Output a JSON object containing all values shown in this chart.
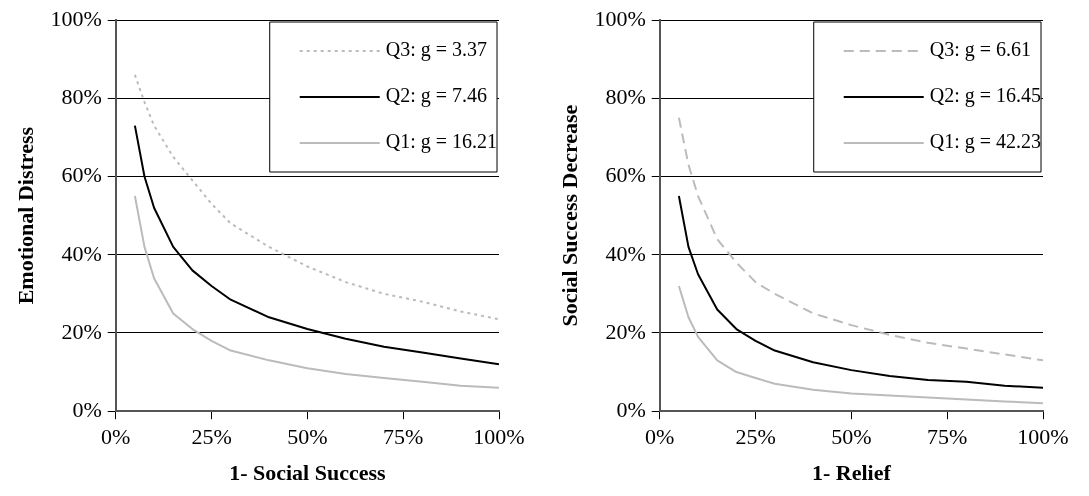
{
  "chart_data": [
    {
      "type": "line",
      "xlabel": "1- Social Success",
      "ylabel": "Emotional Distress",
      "x": [
        0.05,
        0.075,
        0.1,
        0.15,
        0.2,
        0.25,
        0.3,
        0.4,
        0.5,
        0.6,
        0.7,
        0.8,
        0.9,
        1.0
      ],
      "series": [
        {
          "name": "Q3: g = 3.37",
          "color": "#bbbbbb",
          "line_style": "dotted",
          "values": [
            86,
            79,
            73,
            65,
            59,
            53,
            48,
            42,
            37,
            33,
            30,
            28,
            25.5,
            23.5
          ]
        },
        {
          "name": "Q2: g = 7.46",
          "color": "#000000",
          "line_style": "solid",
          "values": [
            73,
            60,
            52,
            42,
            36,
            32,
            28.5,
            24,
            21,
            18.5,
            16.5,
            15,
            13.5,
            12
          ]
        },
        {
          "name": "Q1: g = 16.21",
          "color": "#bbbbbb",
          "line_style": "solid",
          "values": [
            55,
            42,
            34,
            25,
            21,
            18,
            15.5,
            13,
            11,
            9.5,
            8.5,
            7.5,
            6.5,
            6
          ]
        }
      ],
      "xlim": [
        0,
        1
      ],
      "xticks": [
        {
          "value": 0,
          "label": "0%"
        },
        {
          "value": 0.25,
          "label": "25%"
        },
        {
          "value": 0.5,
          "label": "50%"
        },
        {
          "value": 0.75,
          "label": "75%"
        },
        {
          "value": 1,
          "label": "100%"
        }
      ],
      "ylim": [
        0,
        100
      ],
      "yticks": [
        {
          "value": 0,
          "label": "0%"
        },
        {
          "value": 20,
          "label": "20%"
        },
        {
          "value": 40,
          "label": "40%"
        },
        {
          "value": 60,
          "label": "60%"
        },
        {
          "value": 80,
          "label": "80%"
        },
        {
          "value": 100,
          "label": "100%"
        }
      ],
      "grid": "y",
      "legend": "top right",
      "marker": "none"
    },
    {
      "type": "line",
      "xlabel": "1- Relief",
      "ylabel": "Social Success Decrease",
      "x": [
        0.05,
        0.075,
        0.1,
        0.15,
        0.2,
        0.25,
        0.3,
        0.4,
        0.5,
        0.6,
        0.7,
        0.8,
        0.9,
        1.0
      ],
      "series": [
        {
          "name": "Q3: g = 6.61",
          "color": "#bbbbbb",
          "line_style": "dashed",
          "values": [
            75,
            63,
            55,
            44,
            38,
            33,
            30,
            25,
            22,
            19.5,
            17.5,
            16,
            14.5,
            13
          ]
        },
        {
          "name": "Q2: g = 16.45",
          "color": "#000000",
          "line_style": "solid",
          "values": [
            55,
            42,
            35,
            26,
            21,
            18,
            15.5,
            12.5,
            10.5,
            9,
            8,
            7.5,
            6.5,
            6
          ]
        },
        {
          "name": "Q1: g = 42.23",
          "color": "#bbbbbb",
          "line_style": "solid",
          "values": [
            32,
            24,
            19,
            13,
            10,
            8.5,
            7,
            5.5,
            4.5,
            4,
            3.5,
            3,
            2.5,
            2
          ]
        }
      ],
      "xlim": [
        0,
        1
      ],
      "xticks": [
        {
          "value": 0,
          "label": "0%"
        },
        {
          "value": 0.25,
          "label": "25%"
        },
        {
          "value": 0.5,
          "label": "50%"
        },
        {
          "value": 0.75,
          "label": "75%"
        },
        {
          "value": 1,
          "label": "100%"
        }
      ],
      "ylim": [
        0,
        100
      ],
      "yticks": [
        {
          "value": 0,
          "label": "0%"
        },
        {
          "value": 20,
          "label": "20%"
        },
        {
          "value": 40,
          "label": "40%"
        },
        {
          "value": 60,
          "label": "60%"
        },
        {
          "value": 80,
          "label": "80%"
        },
        {
          "value": 100,
          "label": "100%"
        }
      ],
      "grid": "y",
      "legend": "top right",
      "marker": "none"
    }
  ]
}
